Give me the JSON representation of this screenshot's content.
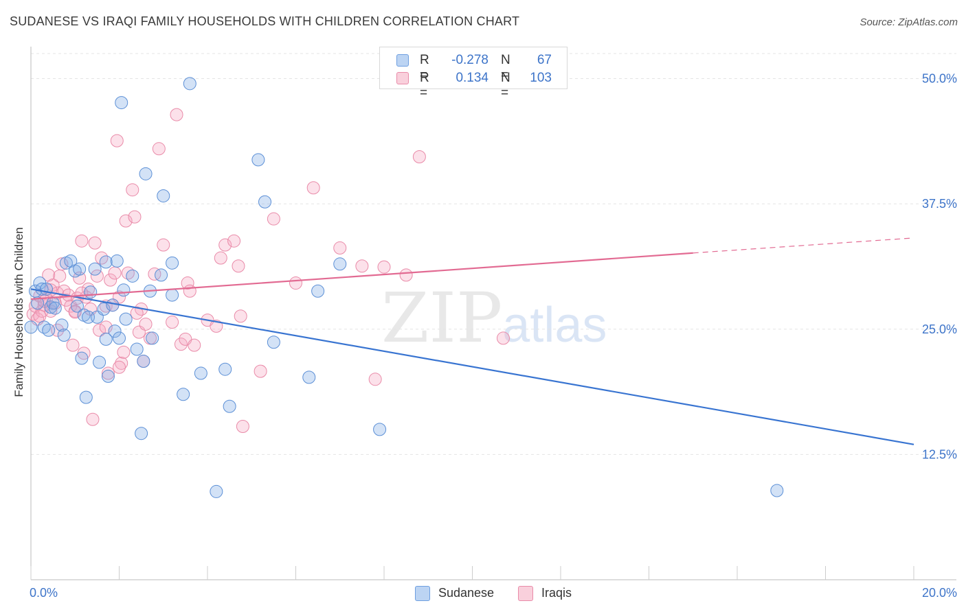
{
  "header": {
    "title": "SUDANESE VS IRAQI FAMILY HOUSEHOLDS WITH CHILDREN CORRELATION CHART",
    "source": "Source: ZipAtlas.com"
  },
  "legend": {
    "rows": [
      {
        "r_key": "R =",
        "r_value": "-0.278",
        "n_key": "N =",
        "n_value": "67",
        "color": "#a9c8ef",
        "border": "#6d9ee0"
      },
      {
        "r_key": "R =",
        "r_value": "0.134",
        "n_key": "N =",
        "n_value": "103",
        "color": "#f7bfd0",
        "border": "#e98aa8"
      }
    ]
  },
  "watermark": {
    "zip": "ZIP",
    "atlas": "atlas"
  },
  "colors": {
    "blue_fill": "rgba(130,172,230,0.35)",
    "blue_stroke": "#5b8fd6",
    "blue_line": "#3874d1",
    "pink_fill": "rgba(245,170,195,0.35)",
    "pink_stroke": "#e98aa8",
    "pink_line": "#e26a92",
    "tick_text": "#3d74c9",
    "grid": "#e4e4e4"
  },
  "chart_data": {
    "type": "scatter",
    "title": "SUDANESE VS IRAQI FAMILY HOUSEHOLDS WITH CHILDREN CORRELATION CHART",
    "xlabel": "",
    "ylabel": "Family Households with Children",
    "xlim": [
      0,
      20
    ],
    "ylim": [
      0,
      52.5
    ],
    "x_tick_labels": [
      "0.0%",
      "20.0%"
    ],
    "y_ticks": [
      12.5,
      25.0,
      37.5,
      50.0
    ],
    "y_tick_labels": [
      "12.5%",
      "25.0%",
      "37.5%",
      "50.0%"
    ],
    "grid": true,
    "legend_position": "top-center",
    "series": [
      {
        "name": "Sudanese",
        "r": -0.278,
        "n": 67,
        "trend": {
          "x0": 0,
          "y0": 29.0,
          "x1": 20,
          "y1": 13.5
        },
        "points": [
          [
            0.0,
            25.2
          ],
          [
            0.1,
            28.8
          ],
          [
            0.15,
            27.6
          ],
          [
            0.2,
            29.6
          ],
          [
            0.25,
            29.0
          ],
          [
            0.3,
            25.2
          ],
          [
            0.35,
            29.0
          ],
          [
            0.4,
            24.9
          ],
          [
            0.45,
            27.2
          ],
          [
            0.5,
            27.6
          ],
          [
            0.55,
            27.1
          ],
          [
            0.7,
            25.4
          ],
          [
            0.75,
            24.4
          ],
          [
            0.8,
            31.6
          ],
          [
            0.9,
            31.8
          ],
          [
            1.0,
            30.8
          ],
          [
            1.05,
            27.3
          ],
          [
            1.1,
            31.0
          ],
          [
            1.15,
            22.1
          ],
          [
            1.2,
            26.4
          ],
          [
            1.25,
            18.2
          ],
          [
            1.3,
            26.2
          ],
          [
            1.35,
            28.7
          ],
          [
            1.45,
            31.0
          ],
          [
            1.5,
            26.2
          ],
          [
            1.55,
            21.7
          ],
          [
            1.65,
            27.0
          ],
          [
            1.7,
            31.7
          ],
          [
            1.7,
            24.0
          ],
          [
            1.75,
            20.3
          ],
          [
            1.85,
            27.4
          ],
          [
            1.9,
            24.8
          ],
          [
            1.95,
            31.8
          ],
          [
            2.0,
            24.1
          ],
          [
            2.05,
            47.6
          ],
          [
            2.1,
            28.9
          ],
          [
            2.15,
            26.0
          ],
          [
            2.3,
            30.3
          ],
          [
            2.4,
            23.0
          ],
          [
            2.5,
            14.6
          ],
          [
            2.55,
            21.8
          ],
          [
            2.6,
            40.5
          ],
          [
            2.7,
            28.8
          ],
          [
            2.75,
            24.1
          ],
          [
            2.95,
            30.4
          ],
          [
            3.0,
            38.3
          ],
          [
            3.2,
            28.4
          ],
          [
            3.2,
            31.6
          ],
          [
            3.45,
            18.5
          ],
          [
            3.6,
            49.5
          ],
          [
            3.85,
            20.6
          ],
          [
            4.2,
            8.8
          ],
          [
            4.4,
            21.0
          ],
          [
            4.5,
            17.3
          ],
          [
            5.15,
            41.9
          ],
          [
            5.3,
            37.7
          ],
          [
            5.5,
            23.7
          ],
          [
            6.3,
            20.2
          ],
          [
            6.5,
            28.8
          ],
          [
            7.0,
            31.5
          ],
          [
            7.9,
            15.0
          ],
          [
            16.9,
            8.9
          ]
        ]
      },
      {
        "name": "Iraqis",
        "r": 0.134,
        "n": 103,
        "trend": {
          "x0": 0,
          "y0": 28.0,
          "x1": 15,
          "y1": 32.6
        },
        "trend_dashed_to": {
          "x": 20,
          "y": 34.1
        },
        "points": [
          [
            0.05,
            26.5
          ],
          [
            0.1,
            27.3
          ],
          [
            0.15,
            26.0
          ],
          [
            0.2,
            28.3
          ],
          [
            0.25,
            26.8
          ],
          [
            0.3,
            27.4
          ],
          [
            0.35,
            28.0
          ],
          [
            0.4,
            30.4
          ],
          [
            0.45,
            26.8
          ],
          [
            0.5,
            29.4
          ],
          [
            0.55,
            27.6
          ],
          [
            0.6,
            28.6
          ],
          [
            0.65,
            30.3
          ],
          [
            0.7,
            31.5
          ],
          [
            0.75,
            28.8
          ],
          [
            0.8,
            27.9
          ],
          [
            0.85,
            28.4
          ],
          [
            0.9,
            27.3
          ],
          [
            0.95,
            23.4
          ],
          [
            1.0,
            26.8
          ],
          [
            1.05,
            28.1
          ],
          [
            1.1,
            30.1
          ],
          [
            1.15,
            33.8
          ],
          [
            1.2,
            22.6
          ],
          [
            1.25,
            28.2
          ],
          [
            1.3,
            29.0
          ],
          [
            1.35,
            27.0
          ],
          [
            1.45,
            33.6
          ],
          [
            1.5,
            30.3
          ],
          [
            1.55,
            24.9
          ],
          [
            1.6,
            32.1
          ],
          [
            1.7,
            27.3
          ],
          [
            1.75,
            20.6
          ],
          [
            1.8,
            29.9
          ],
          [
            1.85,
            27.4
          ],
          [
            1.9,
            30.6
          ],
          [
            1.95,
            43.8
          ],
          [
            2.0,
            28.2
          ],
          [
            2.05,
            21.6
          ],
          [
            2.1,
            22.7
          ],
          [
            2.15,
            35.8
          ],
          [
            2.2,
            30.6
          ],
          [
            2.3,
            38.9
          ],
          [
            2.35,
            36.2
          ],
          [
            2.45,
            24.7
          ],
          [
            2.5,
            27.0
          ],
          [
            2.55,
            21.8
          ],
          [
            2.6,
            25.5
          ],
          [
            2.7,
            24.1
          ],
          [
            2.8,
            30.5
          ],
          [
            2.9,
            43.0
          ],
          [
            3.0,
            33.4
          ],
          [
            3.2,
            25.7
          ],
          [
            3.3,
            46.4
          ],
          [
            3.4,
            23.5
          ],
          [
            3.5,
            24.0
          ],
          [
            3.55,
            29.6
          ],
          [
            3.6,
            28.8
          ],
          [
            3.7,
            23.4
          ],
          [
            4.0,
            25.9
          ],
          [
            4.2,
            25.3
          ],
          [
            4.3,
            32.1
          ],
          [
            4.4,
            33.4
          ],
          [
            4.6,
            33.8
          ],
          [
            4.7,
            31.3
          ],
          [
            4.75,
            26.3
          ],
          [
            4.8,
            15.3
          ],
          [
            5.2,
            20.8
          ],
          [
            5.5,
            36.0
          ],
          [
            6.0,
            29.6
          ],
          [
            6.4,
            39.1
          ],
          [
            7.0,
            33.1
          ],
          [
            7.5,
            31.3
          ],
          [
            7.8,
            20.0
          ],
          [
            8.0,
            31.2
          ],
          [
            8.5,
            30.4
          ],
          [
            8.8,
            42.2
          ],
          [
            10.7,
            24.1
          ],
          [
            2.0,
            21.2
          ],
          [
            1.4,
            16.0
          ],
          [
            0.3,
            27.8
          ],
          [
            0.6,
            24.9
          ],
          [
            1.0,
            26.7
          ],
          [
            1.7,
            25.2
          ],
          [
            2.4,
            26.6
          ],
          [
            0.2,
            26.3
          ],
          [
            0.45,
            28.9
          ],
          [
            1.15,
            28.6
          ]
        ]
      }
    ]
  }
}
